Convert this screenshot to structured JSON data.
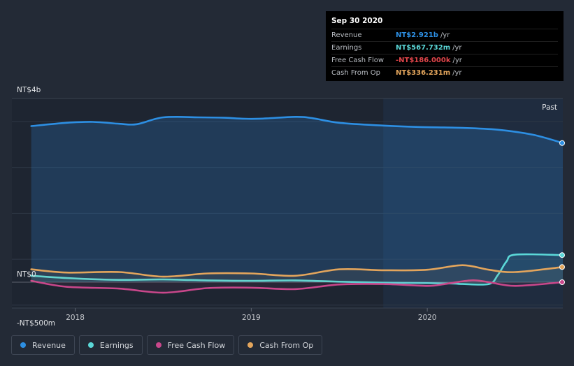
{
  "chart_data": {
    "type": "line",
    "x_ticks": [
      2018,
      2019,
      2020
    ],
    "x_tick_labels": [
      "2018",
      "2019",
      "2020"
    ],
    "y_labels": [
      {
        "value": 4000,
        "text": "NT$4b"
      },
      {
        "value": 0,
        "text": "NT$0"
      },
      {
        "value": -500,
        "text": "-NT$500m"
      }
    ],
    "ylim": [
      -500,
      4000
    ],
    "xlim": [
      2017.64,
      2020.77
    ],
    "past_label": "Past",
    "past_start": 2019.75,
    "series": [
      {
        "name": "Revenue",
        "color": "#2d8fe3",
        "fill": true,
        "points": [
          [
            2017.75,
            3400
          ],
          [
            2017.95,
            3470
          ],
          [
            2018.1,
            3490
          ],
          [
            2018.25,
            3450
          ],
          [
            2018.35,
            3440
          ],
          [
            2018.5,
            3590
          ],
          [
            2018.7,
            3590
          ],
          [
            2018.85,
            3580
          ],
          [
            2018.95,
            3560
          ],
          [
            2019.05,
            3560
          ],
          [
            2019.25,
            3600
          ],
          [
            2019.35,
            3570
          ],
          [
            2019.5,
            3470
          ],
          [
            2019.75,
            3410
          ],
          [
            2019.95,
            3380
          ],
          [
            2020.2,
            3360
          ],
          [
            2020.4,
            3320
          ],
          [
            2020.6,
            3210
          ],
          [
            2020.77,
            3030
          ]
        ]
      },
      {
        "name": "Earnings",
        "color": "#5bd8d8",
        "fill": false,
        "points": [
          [
            2017.75,
            140
          ],
          [
            2018.0,
            80
          ],
          [
            2018.25,
            50
          ],
          [
            2018.5,
            60
          ],
          [
            2018.75,
            40
          ],
          [
            2019.0,
            30
          ],
          [
            2019.25,
            40
          ],
          [
            2019.5,
            10
          ],
          [
            2019.75,
            -10
          ],
          [
            2020.0,
            -20
          ],
          [
            2020.15,
            -30
          ],
          [
            2020.2,
            -40
          ],
          [
            2020.35,
            -40
          ],
          [
            2020.4,
            150
          ],
          [
            2020.45,
            450
          ],
          [
            2020.5,
            600
          ],
          [
            2020.77,
            590
          ]
        ]
      },
      {
        "name": "Free Cash Flow",
        "color": "#c9478b",
        "fill": false,
        "points": [
          [
            2017.75,
            30
          ],
          [
            2017.95,
            -100
          ],
          [
            2018.25,
            -140
          ],
          [
            2018.5,
            -230
          ],
          [
            2018.75,
            -130
          ],
          [
            2019.0,
            -120
          ],
          [
            2019.25,
            -150
          ],
          [
            2019.5,
            -50
          ],
          [
            2019.75,
            -40
          ],
          [
            2020.0,
            -80
          ],
          [
            2020.1,
            -40
          ],
          [
            2020.25,
            40
          ],
          [
            2020.35,
            0
          ],
          [
            2020.5,
            -80
          ],
          [
            2020.77,
            0
          ]
        ]
      },
      {
        "name": "Cash From Op",
        "color": "#e3a55c",
        "fill": false,
        "points": [
          [
            2017.75,
            280
          ],
          [
            2017.95,
            210
          ],
          [
            2018.25,
            220
          ],
          [
            2018.5,
            120
          ],
          [
            2018.75,
            190
          ],
          [
            2019.0,
            190
          ],
          [
            2019.25,
            140
          ],
          [
            2019.5,
            280
          ],
          [
            2019.75,
            260
          ],
          [
            2020.0,
            270
          ],
          [
            2020.2,
            370
          ],
          [
            2020.35,
            270
          ],
          [
            2020.5,
            220
          ],
          [
            2020.77,
            330
          ]
        ]
      }
    ],
    "end_markers": [
      {
        "series": "Revenue",
        "value": 3030
      },
      {
        "series": "Earnings",
        "value": 590
      },
      {
        "series": "Free Cash Flow",
        "value": 0
      },
      {
        "series": "Cash From Op",
        "value": 330
      }
    ]
  },
  "tooltip": {
    "date": "Sep 30 2020",
    "rows": [
      {
        "name": "Revenue",
        "value": "NT$2.921b",
        "unit": "/yr",
        "color": "#2d8fe3"
      },
      {
        "name": "Earnings",
        "value": "NT$567.732m",
        "unit": "/yr",
        "color": "#5bd8d8"
      },
      {
        "name": "Free Cash Flow",
        "value": "-NT$186.000k",
        "unit": "/yr",
        "color": "#e0454a"
      },
      {
        "name": "Cash From Op",
        "value": "NT$336.231m",
        "unit": "/yr",
        "color": "#e3a55c"
      }
    ]
  },
  "legend": [
    {
      "label": "Revenue",
      "color": "#2d8fe3"
    },
    {
      "label": "Earnings",
      "color": "#5bd8d8"
    },
    {
      "label": "Free Cash Flow",
      "color": "#c9478b"
    },
    {
      "label": "Cash From Op",
      "color": "#e3a55c"
    }
  ]
}
